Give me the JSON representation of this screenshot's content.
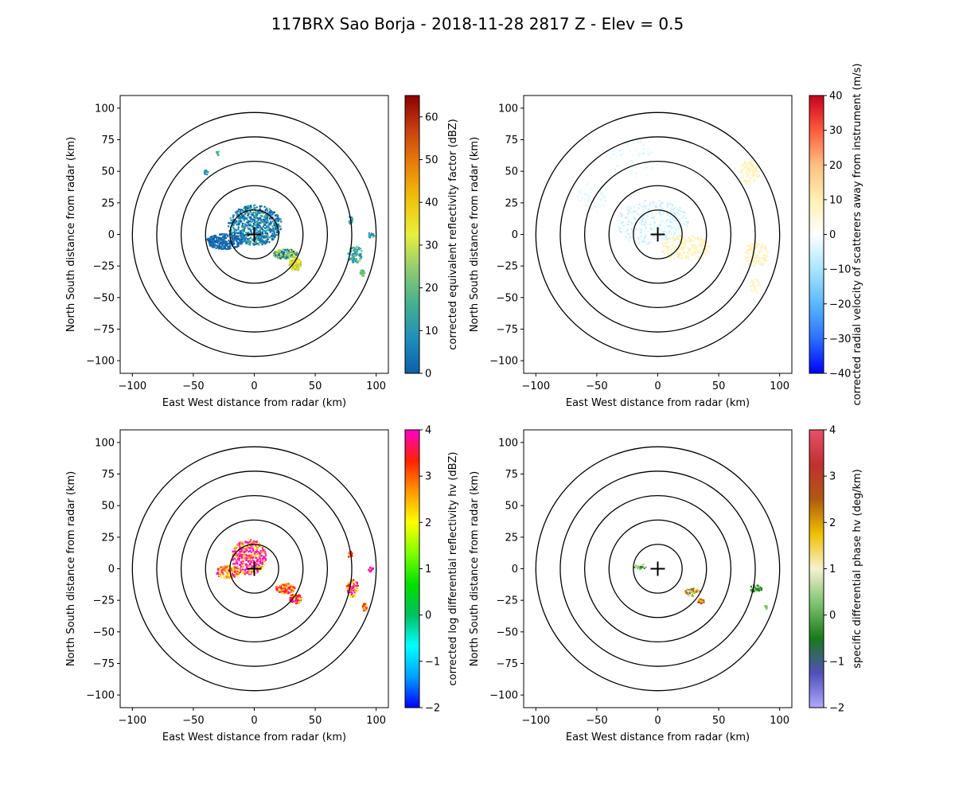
{
  "figure": {
    "title": "117BRX Sao Borja - 2018-11-28 2817 Z -  Elev = 0.5"
  },
  "chart_data": [
    {
      "type": "heatmap",
      "id": "reflectivity",
      "xlabel": "East West distance from radar (km)",
      "ylabel": "North South distance from radar (km)",
      "xlim": [
        -110,
        110
      ],
      "ylim": [
        -110,
        110
      ],
      "xticks": [
        -100,
        -50,
        0,
        50,
        100
      ],
      "yticks": [
        -100,
        -75,
        -50,
        -25,
        0,
        25,
        50,
        75,
        100
      ],
      "range_rings_km": [
        20,
        40,
        60,
        80,
        100
      ],
      "colorbar": {
        "label": "corrected equivalent reflectivity factor (dBZ)",
        "range": [
          0,
          65
        ],
        "ticks": [
          0,
          10,
          20,
          30,
          40,
          50,
          60
        ],
        "colormap": [
          "#0b60a8",
          "#1f8ebb",
          "#45b08f",
          "#8fcc72",
          "#e8ef3c",
          "#f0c30c",
          "#e8820a",
          "#c94010",
          "#8b0000"
        ]
      }
    },
    {
      "type": "heatmap",
      "id": "velocity",
      "xlabel": "East West distance from radar (km)",
      "ylabel": "North South distance from radar (km)",
      "xlim": [
        -110,
        110
      ],
      "ylim": [
        -110,
        110
      ],
      "xticks": [
        -100,
        -50,
        0,
        50,
        100
      ],
      "yticks": [
        -100,
        -75,
        -50,
        -25,
        0,
        25,
        50,
        75,
        100
      ],
      "range_rings_km": [
        20,
        40,
        60,
        80,
        100
      ],
      "colorbar": {
        "label": "corrected radial velocity of scatterers away from instrument (m/s)",
        "range": [
          -40,
          40
        ],
        "ticks": [
          -40,
          -30,
          -20,
          -10,
          0,
          10,
          20,
          30,
          40
        ],
        "colormap": [
          "#0000ff",
          "#2a6fff",
          "#5ab8ff",
          "#a9e6ff",
          "#ffffff",
          "#fff0b3",
          "#ffc080",
          "#ff5a3c",
          "#c8001e"
        ]
      }
    },
    {
      "type": "heatmap",
      "id": "zdr",
      "xlabel": "East West distance from radar (km)",
      "ylabel": "North South distance from radar (km)",
      "xlim": [
        -110,
        110
      ],
      "ylim": [
        -110,
        110
      ],
      "xticks": [
        -100,
        -50,
        0,
        50,
        100
      ],
      "yticks": [
        -100,
        -75,
        -50,
        -25,
        0,
        25,
        50,
        75,
        100
      ],
      "range_rings_km": [
        20,
        40,
        60,
        80,
        100
      ],
      "colorbar": {
        "label": "corrected log differential reflectivity hv (dBZ)",
        "range": [
          -2,
          4
        ],
        "ticks": [
          -2,
          -1,
          0,
          1,
          2,
          3,
          4
        ],
        "colormap": [
          "#0000ff",
          "#00a0ff",
          "#00ffff",
          "#00c060",
          "#00e000",
          "#80ff00",
          "#ffff00",
          "#ff9900",
          "#ff2200",
          "#ff00cc"
        ]
      }
    },
    {
      "type": "heatmap",
      "id": "kdp",
      "xlabel": "East West distance from radar (km)",
      "ylabel": "North South distance from radar (km)",
      "xlim": [
        -110,
        110
      ],
      "ylim": [
        -110,
        110
      ],
      "xticks": [
        -100,
        -50,
        0,
        50,
        100
      ],
      "yticks": [
        -100,
        -75,
        -50,
        -25,
        0,
        25,
        50,
        75,
        100
      ],
      "range_rings_km": [
        20,
        40,
        60,
        80,
        100
      ],
      "colorbar": {
        "label": "specific differential phase hv (deg/km)",
        "range": [
          -2,
          4
        ],
        "ticks": [
          -2,
          -1,
          0,
          1,
          2,
          3,
          4
        ],
        "colormap": [
          "#b0a8ff",
          "#5050b8",
          "#1a7a1a",
          "#7ec36e",
          "#f5f2d0",
          "#f0c000",
          "#b05a10",
          "#c03030",
          "#e8506a"
        ]
      }
    }
  ],
  "echoes": {
    "reflectivity": [
      {
        "x": 0,
        "y": 8,
        "rx": 22,
        "ry": 16,
        "n": 700,
        "c": [
          "#0b60a8",
          "#1f6fb0",
          "#1f8ebb",
          "#45b08f"
        ]
      },
      {
        "x": -25,
        "y": -5,
        "rx": 15,
        "ry": 6,
        "n": 260,
        "c": [
          "#0b60a8",
          "#1f6fb0"
        ]
      },
      {
        "x": 25,
        "y": -15,
        "rx": 10,
        "ry": 4,
        "n": 200,
        "c": [
          "#45b08f",
          "#8fcc72",
          "#e8ef3c",
          "#0b60a8"
        ]
      },
      {
        "x": 33,
        "y": -23,
        "rx": 5,
        "ry": 5,
        "n": 120,
        "c": [
          "#e8ef3c",
          "#f0c30c",
          "#8fcc72"
        ]
      },
      {
        "x": 82,
        "y": -15,
        "rx": 6,
        "ry": 7,
        "n": 90,
        "c": [
          "#45b08f",
          "#8fcc72",
          "#1f8ebb"
        ]
      },
      {
        "x": 88,
        "y": -30,
        "rx": 2,
        "ry": 3,
        "n": 25,
        "c": [
          "#45b08f",
          "#8fcc72"
        ]
      },
      {
        "x": 78,
        "y": 12,
        "rx": 2,
        "ry": 3,
        "n": 16,
        "c": [
          "#45b08f",
          "#1f8ebb"
        ]
      },
      {
        "x": 95,
        "y": 0,
        "rx": 3,
        "ry": 2,
        "n": 16,
        "c": [
          "#45b08f",
          "#1f8ebb"
        ]
      },
      {
        "x": -40,
        "y": 50,
        "rx": 2,
        "ry": 2,
        "n": 12,
        "c": [
          "#1f8ebb",
          "#45b08f"
        ]
      },
      {
        "x": -30,
        "y": 65,
        "rx": 2,
        "ry": 2,
        "n": 8,
        "c": [
          "#45b08f"
        ]
      }
    ],
    "velocity": [
      {
        "x": -5,
        "y": 10,
        "rx": 30,
        "ry": 18,
        "n": 380,
        "c": [
          "#d8f5ff",
          "#c2ecff",
          "#e8fbff"
        ]
      },
      {
        "x": 22,
        "y": -10,
        "rx": 20,
        "ry": 10,
        "n": 220,
        "c": [
          "#fff5c8",
          "#ffefb0"
        ]
      },
      {
        "x": 80,
        "y": -15,
        "rx": 10,
        "ry": 10,
        "n": 120,
        "c": [
          "#fff5c8",
          "#ffefb0"
        ]
      },
      {
        "x": 75,
        "y": 50,
        "rx": 8,
        "ry": 10,
        "n": 100,
        "c": [
          "#fff5c8",
          "#ffefb0"
        ]
      },
      {
        "x": 80,
        "y": -40,
        "rx": 5,
        "ry": 6,
        "n": 40,
        "c": [
          "#fff5c8"
        ]
      },
      {
        "x": -55,
        "y": 30,
        "rx": 12,
        "ry": 12,
        "n": 50,
        "c": [
          "#d8f5ff",
          "#e8fbff"
        ]
      },
      {
        "x": -20,
        "y": 60,
        "rx": 20,
        "ry": 15,
        "n": 45,
        "c": [
          "#d8f5ff",
          "#e8fbff"
        ]
      }
    ],
    "zdr": [
      {
        "x": -5,
        "y": 10,
        "rx": 14,
        "ry": 14,
        "n": 420,
        "c": [
          "#ff00cc",
          "#ff33dd",
          "#ff00cc",
          "#ffff00",
          "#ff9900"
        ]
      },
      {
        "x": -22,
        "y": -2,
        "rx": 10,
        "ry": 5,
        "n": 150,
        "c": [
          "#ff00cc",
          "#ffff00",
          "#ff9900"
        ]
      },
      {
        "x": 25,
        "y": -15,
        "rx": 8,
        "ry": 4,
        "n": 130,
        "c": [
          "#ff00cc",
          "#ffff00",
          "#ff9900",
          "#ff2200"
        ]
      },
      {
        "x": 33,
        "y": -23,
        "rx": 5,
        "ry": 4,
        "n": 90,
        "c": [
          "#ff00cc",
          "#ff2200",
          "#ffff00"
        ]
      },
      {
        "x": 80,
        "y": -15,
        "rx": 5,
        "ry": 7,
        "n": 80,
        "c": [
          "#ff9900",
          "#ffff00",
          "#ff2200",
          "#ff00cc"
        ]
      },
      {
        "x": 90,
        "y": -30,
        "rx": 2,
        "ry": 3,
        "n": 20,
        "c": [
          "#ff9900",
          "#ff2200"
        ]
      },
      {
        "x": 78,
        "y": 12,
        "rx": 2,
        "ry": 3,
        "n": 14,
        "c": [
          "#ff2200",
          "#ff9900"
        ]
      },
      {
        "x": 95,
        "y": 0,
        "rx": 2,
        "ry": 2,
        "n": 12,
        "c": [
          "#ff00cc",
          "#ff2200"
        ]
      }
    ],
    "kdp": [
      {
        "x": -15,
        "y": 2,
        "rx": 5,
        "ry": 2,
        "n": 30,
        "c": [
          "#7ec36e",
          "#1a7a1a",
          "#f5f2d0"
        ]
      },
      {
        "x": 28,
        "y": -18,
        "rx": 7,
        "ry": 3,
        "n": 55,
        "c": [
          "#f5f2d0",
          "#7ec36e",
          "#f0c000",
          "#b05a10"
        ]
      },
      {
        "x": 35,
        "y": -25,
        "rx": 3,
        "ry": 2,
        "n": 20,
        "c": [
          "#b05a10",
          "#c03030",
          "#f0c000"
        ]
      },
      {
        "x": 80,
        "y": -15,
        "rx": 5,
        "ry": 3,
        "n": 40,
        "c": [
          "#7ec36e",
          "#1a7a1a"
        ]
      },
      {
        "x": 88,
        "y": -30,
        "rx": 1,
        "ry": 2,
        "n": 8,
        "c": [
          "#7ec36e"
        ]
      }
    ]
  }
}
